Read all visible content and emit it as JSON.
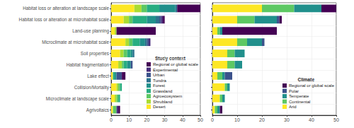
{
  "chart_data": [
    {
      "type": "bar",
      "orientation": "horizontal",
      "stacked": true,
      "grid": true,
      "legend": "bottom right",
      "legend_title": "Study context",
      "categories": [
        "Habitat loss or alteration at landscape scale",
        "Habitat loss or alteration at microhabitat scale",
        "Land-use planning",
        "Microclimate at microhabitat scale",
        "Soil properties",
        "Habitat fragmentation",
        "Lake effect",
        "Collision/Mortality",
        "Microclimate at landscape scale",
        "Agrivoltaics"
      ],
      "series": [
        {
          "name": "Regional or global scale",
          "color": "#440154",
          "values": [
            13,
            1,
            22,
            0,
            0,
            0,
            2,
            0,
            0,
            1
          ]
        },
        {
          "name": "Experimental",
          "color": "#472D7B",
          "values": [
            0,
            1,
            0,
            1,
            0,
            0,
            0,
            0,
            0,
            1
          ]
        },
        {
          "name": "Urban",
          "color": "#3B528B",
          "values": [
            0,
            1,
            0,
            1,
            0,
            1,
            3,
            0,
            0,
            0
          ]
        },
        {
          "name": "Tundra",
          "color": "#2C728E",
          "values": [
            1,
            2,
            0,
            1,
            1,
            0,
            0,
            0,
            0,
            0
          ]
        },
        {
          "name": "Forest",
          "color": "#21908C",
          "values": [
            9,
            5,
            0,
            3,
            1,
            2,
            1,
            0,
            0,
            0
          ]
        },
        {
          "name": "Grassland",
          "color": "#27AD81",
          "values": [
            7,
            8,
            0,
            4,
            2,
            2,
            1,
            1,
            1,
            0
          ]
        },
        {
          "name": "Agroecosystem",
          "color": "#5DC863",
          "values": [
            3,
            2,
            0,
            2,
            2,
            1,
            0,
            1,
            1,
            2
          ]
        },
        {
          "name": "Shrubland",
          "color": "#AADC32",
          "values": [
            4,
            3,
            1,
            2,
            2,
            2,
            0,
            1,
            1,
            0
          ]
        },
        {
          "name": "Desert",
          "color": "#FDE725",
          "values": [
            13,
            7,
            2,
            8,
            5,
            4,
            1,
            3,
            2,
            1
          ]
        }
      ],
      "xlim": [
        0,
        50
      ],
      "xticks": [
        0,
        10,
        20,
        30,
        40,
        50
      ]
    },
    {
      "type": "bar",
      "orientation": "horizontal",
      "stacked": true,
      "grid": true,
      "legend": "bottom right",
      "legend_title": "Climate",
      "tick_labels": "x",
      "categories": [
        "Habitat loss or alteration at landscape scale",
        "Habitat loss or alteration at microhabitat scale",
        "Land-use planning",
        "Microclimate at microhabitat scale",
        "Soil properties",
        "Habitat fragmentation",
        "Lake effect",
        "Collision/Mortality",
        "Microclimate at landscape scale",
        "Agrivoltaics"
      ],
      "series": [
        {
          "name": "Regional or global scale",
          "color": "#440154",
          "values": [
            6,
            1,
            22,
            0,
            0,
            0,
            0,
            0,
            0,
            1
          ]
        },
        {
          "name": "Polar",
          "color": "#3B528B",
          "values": [
            0,
            1,
            0,
            1,
            0,
            0,
            3,
            0,
            0,
            0
          ]
        },
        {
          "name": "Temperate",
          "color": "#21908C",
          "values": [
            11,
            9,
            1,
            6,
            4,
            3,
            1,
            1,
            1,
            1
          ]
        },
        {
          "name": "Continental",
          "color": "#5DC863",
          "values": [
            13,
            7,
            1,
            4,
            3,
            3,
            2,
            1,
            1,
            1
          ]
        },
        {
          "name": "Arid",
          "color": "#FDE725",
          "values": [
            20,
            10,
            2,
            10,
            6,
            6,
            2,
            5,
            3,
            1
          ]
        }
      ],
      "xlim": [
        0,
        50
      ],
      "xticks": [
        0,
        10,
        20,
        30,
        40,
        50
      ]
    }
  ]
}
